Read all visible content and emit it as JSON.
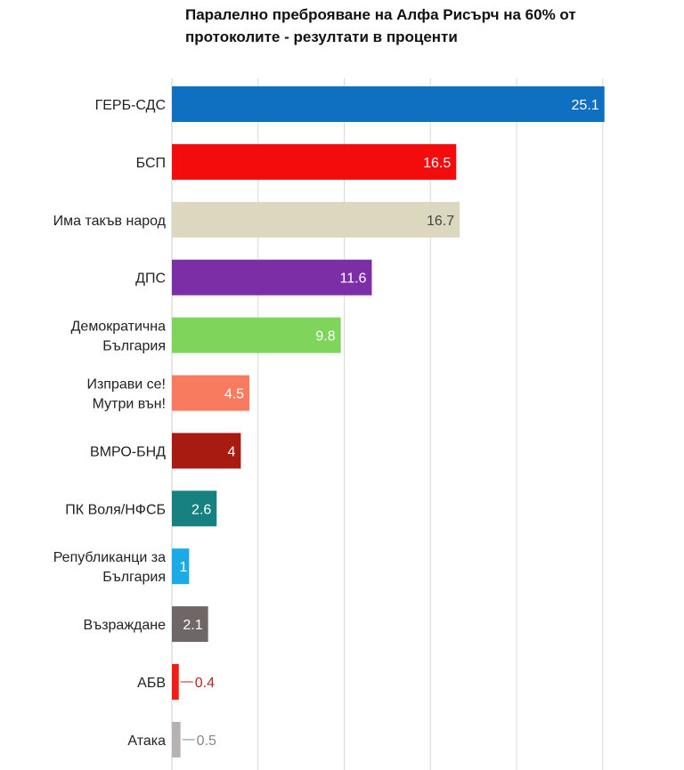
{
  "chart_data": {
    "type": "bar",
    "orientation": "horizontal",
    "title": "Паралелно преброяване на Алфа Рисърч на 60% от протоколите - резултати в проценти",
    "xlabel": "",
    "ylabel": "",
    "xlim": [
      0,
      30
    ],
    "grid": true,
    "categories": [
      [
        "ГЕРБ-СДС"
      ],
      [
        "БСП"
      ],
      [
        "Има такъв народ"
      ],
      [
        "ДПС"
      ],
      [
        "Демократична",
        "България"
      ],
      [
        "Изправи се!",
        "Мутри вън!"
      ],
      [
        "ВМРО-БНД"
      ],
      [
        "ПК Воля/НФСБ"
      ],
      [
        "Републиканци за",
        "България"
      ],
      [
        "Възраждане"
      ],
      [
        "АБВ"
      ],
      [
        "Атака"
      ]
    ],
    "values": [
      25.1,
      16.5,
      16.7,
      11.6,
      9.8,
      4.5,
      4,
      2.6,
      1,
      2.1,
      0.4,
      0.5
    ],
    "labels": [
      "25.1",
      "16.5",
      "16.7",
      "11.6",
      "9.8",
      "4.5",
      "4",
      "2.6",
      "1",
      "2.1",
      "0.4",
      "0.5"
    ],
    "colors": [
      "#0f6fc0",
      "#f40b0b",
      "#dcd8c0",
      "#7b2ea5",
      "#7fd45c",
      "#f97b5f",
      "#a81b10",
      "#178080",
      "#1aaae6",
      "#6e6766",
      "#f01c16",
      "#b6b2b2"
    ],
    "label_colors": [
      "#ffffff",
      "#ffffff",
      "#444444",
      "#ffffff",
      "#ffffff",
      "#ffffff",
      "#ffffff",
      "#ffffff",
      "#ffffff",
      "#ffffff",
      "#b02a20",
      "#888888"
    ]
  }
}
